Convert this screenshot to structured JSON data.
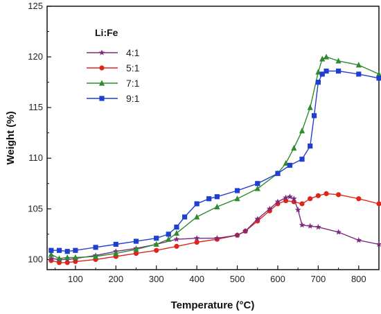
{
  "chart_data": {
    "type": "line",
    "xlabel": "Temperature (°C)",
    "ylabel": "Weight (%)",
    "xlim": [
      30,
      850
    ],
    "ylim": [
      99,
      125
    ],
    "xticks": [
      100,
      200,
      300,
      400,
      500,
      600,
      700,
      800
    ],
    "yticks": [
      100,
      105,
      110,
      115,
      120,
      125
    ],
    "legend_title": "Li:Fe",
    "legend_position": "top-left",
    "series": [
      {
        "name": "4:1",
        "color": "#7b2a7e",
        "marker": "star",
        "points": [
          [
            40,
            100.1
          ],
          [
            60,
            100.0
          ],
          [
            80,
            100.0
          ],
          [
            100,
            100.1
          ],
          [
            150,
            100.4
          ],
          [
            200,
            100.8
          ],
          [
            250,
            101.1
          ],
          [
            300,
            101.5
          ],
          [
            350,
            102.0
          ],
          [
            400,
            102.1
          ],
          [
            450,
            102.1
          ],
          [
            500,
            102.4
          ],
          [
            520,
            102.8
          ],
          [
            550,
            104.0
          ],
          [
            580,
            105.0
          ],
          [
            600,
            105.7
          ],
          [
            620,
            106.1
          ],
          [
            630,
            106.2
          ],
          [
            640,
            106.0
          ],
          [
            650,
            104.9
          ],
          [
            660,
            103.4
          ],
          [
            680,
            103.3
          ],
          [
            700,
            103.2
          ],
          [
            750,
            102.7
          ],
          [
            800,
            101.9
          ],
          [
            850,
            101.5
          ]
        ]
      },
      {
        "name": "5:1",
        "color": "#e0241b",
        "marker": "circle",
        "points": [
          [
            40,
            99.9
          ],
          [
            60,
            99.7
          ],
          [
            80,
            99.7
          ],
          [
            100,
            99.8
          ],
          [
            150,
            100.0
          ],
          [
            200,
            100.3
          ],
          [
            250,
            100.6
          ],
          [
            300,
            100.9
          ],
          [
            350,
            101.3
          ],
          [
            400,
            101.7
          ],
          [
            450,
            102.0
          ],
          [
            500,
            102.4
          ],
          [
            520,
            102.8
          ],
          [
            550,
            103.8
          ],
          [
            580,
            104.8
          ],
          [
            600,
            105.5
          ],
          [
            620,
            105.8
          ],
          [
            640,
            105.7
          ],
          [
            660,
            105.5
          ],
          [
            680,
            106.0
          ],
          [
            700,
            106.3
          ],
          [
            720,
            106.5
          ],
          [
            750,
            106.4
          ],
          [
            800,
            106.0
          ],
          [
            850,
            105.5
          ]
        ]
      },
      {
        "name": "7:1",
        "color": "#2e8b2e",
        "marker": "triangle",
        "points": [
          [
            40,
            100.5
          ],
          [
            60,
            100.1
          ],
          [
            80,
            100.2
          ],
          [
            100,
            100.2
          ],
          [
            150,
            100.3
          ],
          [
            200,
            100.6
          ],
          [
            250,
            101.0
          ],
          [
            300,
            101.5
          ],
          [
            330,
            102.0
          ],
          [
            350,
            102.6
          ],
          [
            400,
            104.2
          ],
          [
            450,
            105.2
          ],
          [
            500,
            106.0
          ],
          [
            550,
            107.0
          ],
          [
            600,
            108.5
          ],
          [
            620,
            109.5
          ],
          [
            640,
            111.0
          ],
          [
            660,
            112.7
          ],
          [
            680,
            115.0
          ],
          [
            700,
            118.5
          ],
          [
            710,
            119.8
          ],
          [
            720,
            120.0
          ],
          [
            750,
            119.6
          ],
          [
            800,
            119.2
          ],
          [
            850,
            118.3
          ]
        ]
      },
      {
        "name": "9:1",
        "color": "#1f3fd0",
        "marker": "square",
        "points": [
          [
            40,
            100.9
          ],
          [
            60,
            100.9
          ],
          [
            80,
            100.8
          ],
          [
            100,
            100.9
          ],
          [
            150,
            101.2
          ],
          [
            200,
            101.5
          ],
          [
            250,
            101.8
          ],
          [
            300,
            102.1
          ],
          [
            330,
            102.5
          ],
          [
            350,
            103.2
          ],
          [
            370,
            104.2
          ],
          [
            400,
            105.5
          ],
          [
            430,
            106.0
          ],
          [
            450,
            106.2
          ],
          [
            500,
            106.8
          ],
          [
            550,
            107.5
          ],
          [
            600,
            108.5
          ],
          [
            630,
            109.3
          ],
          [
            660,
            109.9
          ],
          [
            680,
            111.2
          ],
          [
            690,
            114.2
          ],
          [
            700,
            117.5
          ],
          [
            710,
            118.3
          ],
          [
            720,
            118.6
          ],
          [
            750,
            118.6
          ],
          [
            800,
            118.3
          ],
          [
            850,
            117.9
          ]
        ]
      }
    ]
  }
}
